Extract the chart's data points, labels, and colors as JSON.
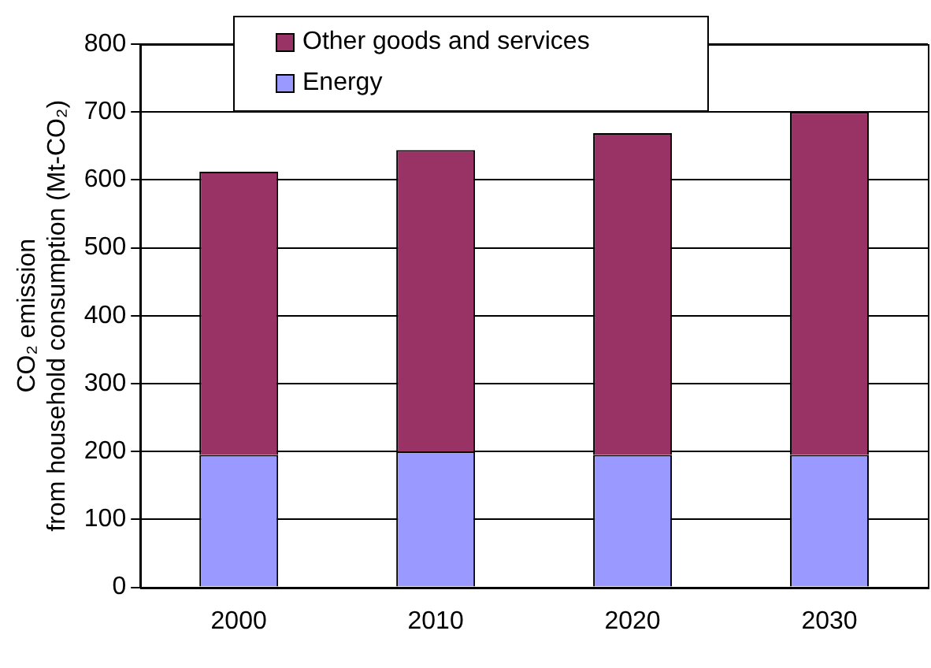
{
  "chart_data": {
    "type": "bar",
    "stacked": true,
    "ylabel": "CO₂ emission\nfrom household consumption (Mt-CO₂)",
    "categories": [
      "2000",
      "2010",
      "2020",
      "2030"
    ],
    "series": [
      {
        "name": "Energy",
        "color": "#9999ff",
        "values": [
          195,
          200,
          195,
          195
        ]
      },
      {
        "name": "Other goods and services",
        "color": "#993366",
        "values": [
          417,
          444,
          474,
          505
        ]
      }
    ],
    "ylim": [
      0,
      800
    ],
    "yticks": [
      0,
      100,
      200,
      300,
      400,
      500,
      600,
      700,
      800
    ],
    "grid": "y",
    "legend": "top"
  }
}
